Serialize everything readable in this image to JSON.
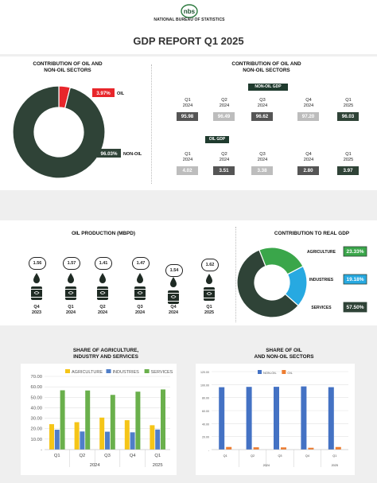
{
  "header": {
    "org": "NATIONAL BUREAU OF STATISTICS",
    "logo_letters": "nbs"
  },
  "title": "GDP REPORT Q1 2025",
  "oil_share": {
    "heading": "CONTRIBUTION OF OIL AND\nNON-OIL SECTORS",
    "chart_data": {
      "type": "pie",
      "categories": [
        "OIL",
        "NON-OIL"
      ],
      "values": [
        3.97,
        96.03
      ],
      "labels": [
        "3.97%",
        "96.03%"
      ],
      "colors": [
        "#e8262b",
        "#2f4337"
      ]
    }
  },
  "sector_table": {
    "heading": "CONTRIBUTION OF OIL AND\nNON-OIL SECTORS",
    "nonoil_tag": "NON-OIL GDP",
    "oil_tag": "OIL GDP",
    "quarters": [
      {
        "q": "Q1",
        "y": "2024"
      },
      {
        "q": "Q2",
        "y": "2024"
      },
      {
        "q": "Q3",
        "y": "2024"
      },
      {
        "q": "Q4",
        "y": "2024"
      },
      {
        "q": "Q1",
        "y": "2025"
      }
    ],
    "nonoil_values": [
      "95.98",
      "96.49",
      "96.62",
      "97.20",
      "96.03"
    ],
    "oil_values": [
      "4.02",
      "3.51",
      "3.38",
      "2.80",
      "3.97"
    ]
  },
  "oil_production": {
    "heading": "OIL PRODUCTION (MBPD)",
    "chart_data": {
      "type": "table",
      "categories": [
        "Q4 2023",
        "Q1 2024",
        "Q2 2024",
        "Q3 2024",
        "Q4 2024",
        "Q1 2025"
      ],
      "values": [
        "1.56",
        "1.57",
        "1.41",
        "1.47",
        "1.54",
        "1.62"
      ]
    },
    "periods": [
      {
        "q": "Q4",
        "y": "2023"
      },
      {
        "q": "Q1",
        "y": "2024"
      },
      {
        "q": "Q2",
        "y": "2024"
      },
      {
        "q": "Q3",
        "y": "2024"
      },
      {
        "q": "Q4",
        "y": "2024"
      },
      {
        "q": "Q1",
        "y": "2025"
      }
    ]
  },
  "real_gdp": {
    "heading": "CONTRIBUTION TO REAL GDP",
    "chart_data": {
      "type": "pie",
      "categories": [
        "AGRICULTURE",
        "INDUSTRIES",
        "SERVICES"
      ],
      "values": [
        23.33,
        19.18,
        57.5
      ],
      "labels": [
        "23.33%",
        "19.18%",
        "57.50%"
      ],
      "colors": [
        "#3aa64a",
        "#27a9e1",
        "#2f4337"
      ]
    }
  },
  "agri_chart": {
    "heading": "SHARE OF AGRICULTURE,\nINDUSTRY AND SERVICES",
    "chart_data": {
      "type": "bar",
      "categories": [
        "Q1",
        "Q2",
        "Q3",
        "Q4",
        "Q1"
      ],
      "year_labels": [
        "2024",
        "2025"
      ],
      "series": [
        {
          "name": "AGRICULTURE",
          "values": [
            24.3,
            26.2,
            30.6,
            28.1,
            23.3
          ],
          "color": "#f5c518"
        },
        {
          "name": "INDUSTRIES",
          "values": [
            19.0,
            17.3,
            17.1,
            16.5,
            19.2
          ],
          "color": "#4f7ec8"
        },
        {
          "name": "SERVICES",
          "values": [
            56.7,
            56.5,
            52.3,
            55.4,
            57.5
          ],
          "color": "#6ab04c"
        }
      ],
      "yticks": [
        "70.00",
        "60.00",
        "50.00",
        "40.00",
        "30.00",
        "20.00",
        "10.00",
        "-"
      ],
      "ylim": [
        0,
        70
      ]
    }
  },
  "oil_chart": {
    "heading": "SHARE OF OIL\nAND NON-OIL SECTORS",
    "chart_data": {
      "type": "bar",
      "categories": [
        "Q1",
        "Q2",
        "Q3",
        "Q4",
        "Q1"
      ],
      "year_labels": [
        "2024",
        "2025"
      ],
      "series": [
        {
          "name": "NON-OIL",
          "values": [
            95.98,
            96.49,
            96.62,
            97.2,
            96.03
          ],
          "color": "#4472c4"
        },
        {
          "name": "OIL",
          "values": [
            4.02,
            3.51,
            3.38,
            2.8,
            3.97
          ],
          "color": "#ed7d31"
        }
      ],
      "yticks": [
        "120.00",
        "100.00",
        "80.00",
        "60.00",
        "40.00",
        "20.00",
        "-"
      ],
      "ylim": [
        0,
        120
      ]
    }
  }
}
